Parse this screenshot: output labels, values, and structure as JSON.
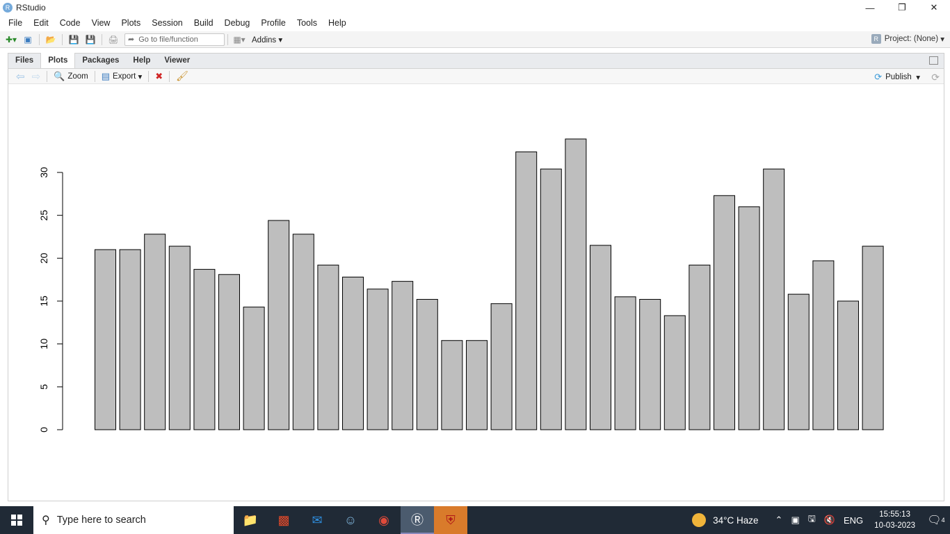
{
  "window": {
    "title": "RStudio",
    "logo_letter": "R"
  },
  "menu": [
    "File",
    "Edit",
    "Code",
    "View",
    "Plots",
    "Session",
    "Build",
    "Debug",
    "Profile",
    "Tools",
    "Help"
  ],
  "toolbar": {
    "goto_placeholder": "Go to file/function",
    "addins_label": "Addins",
    "project_label": "Project: (None)"
  },
  "pane": {
    "tabs": [
      "Files",
      "Plots",
      "Packages",
      "Help",
      "Viewer"
    ],
    "active_tab": "Plots",
    "zoom_label": "Zoom",
    "export_label": "Export",
    "publish_label": "Publish"
  },
  "chart_data": {
    "type": "bar",
    "values": [
      21.0,
      21.0,
      22.8,
      21.4,
      18.7,
      18.1,
      14.3,
      24.4,
      22.8,
      19.2,
      17.8,
      16.4,
      17.3,
      15.2,
      10.4,
      10.4,
      14.7,
      32.4,
      30.4,
      33.9,
      21.5,
      15.5,
      15.2,
      13.3,
      19.2,
      27.3,
      26.0,
      30.4,
      15.8,
      19.7,
      15.0,
      21.4
    ],
    "yticks": [
      "0",
      "5",
      "10",
      "15",
      "20",
      "25",
      "30"
    ],
    "ylim": [
      0,
      35
    ],
    "bar_color": "#bebebe",
    "title": "",
    "xlabel": "",
    "ylabel": ""
  },
  "taskbar": {
    "search_placeholder": "Type here to search",
    "weather": "34°C  Haze",
    "language": "ENG",
    "time": "15:55:13",
    "date": "10-03-2023",
    "notification_count": "4"
  }
}
